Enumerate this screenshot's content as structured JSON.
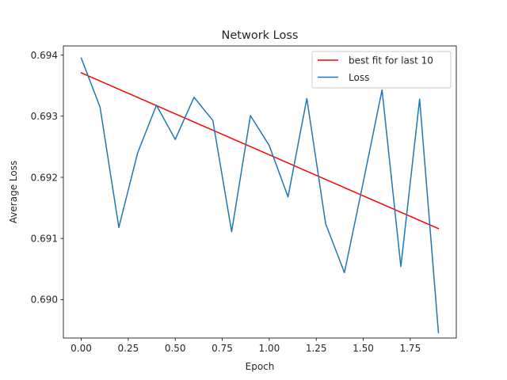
{
  "chart_data": {
    "type": "line",
    "title": "Network Loss",
    "xlabel": "Epoch",
    "ylabel": "Average Loss",
    "xlim": [
      -0.095,
      1.995
    ],
    "ylim": [
      0.68937,
      0.69415
    ],
    "xticks": [
      0.0,
      0.25,
      0.5,
      0.75,
      1.0,
      1.25,
      1.5,
      1.75
    ],
    "xtick_labels": [
      "0.00",
      "0.25",
      "0.50",
      "0.75",
      "1.00",
      "1.25",
      "1.50",
      "1.75"
    ],
    "yticks": [
      0.69,
      0.691,
      0.692,
      0.693,
      0.694
    ],
    "ytick_labels": [
      "0.690",
      "0.691",
      "0.692",
      "0.693",
      "0.694"
    ],
    "grid": false,
    "legend_position": "upper-right",
    "series": [
      {
        "name": "best fit for last 10",
        "color": "#ff0000",
        "x": [
          0.0,
          1.9
        ],
        "y": [
          0.69371,
          0.69116
        ]
      },
      {
        "name": "Loss",
        "color": "#1f77b4",
        "x": [
          0.0,
          0.1,
          0.2,
          0.3,
          0.4,
          0.5,
          0.6,
          0.7,
          0.8,
          0.9,
          1.0,
          1.1,
          1.2,
          1.3,
          1.4,
          1.5,
          1.6,
          1.7,
          1.8,
          1.9
        ],
        "y": [
          0.69395,
          0.69315,
          0.69118,
          0.6924,
          0.69318,
          0.69262,
          0.69331,
          0.69293,
          0.69111,
          0.69301,
          0.69252,
          0.69168,
          0.69329,
          0.69124,
          0.69044,
          0.69192,
          0.69343,
          0.69054,
          0.69328,
          0.68946
        ]
      }
    ]
  }
}
